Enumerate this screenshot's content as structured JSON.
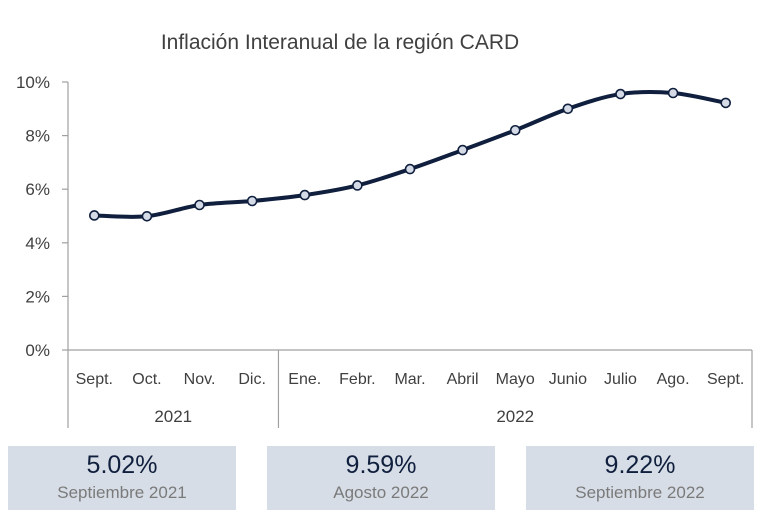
{
  "chart_data": {
    "type": "line",
    "title": "Inflación Interanual de la región CARD",
    "categories": [
      "Sept.",
      "Oct.",
      "Nov.",
      "Dic.",
      "Ene.",
      "Febr.",
      "Mar.",
      "Abril",
      "Mayo",
      "Junio",
      "Julio",
      "Ago.",
      "Sept."
    ],
    "year_groups": [
      {
        "label": "2021",
        "count": 4
      },
      {
        "label": "2022",
        "count": 9
      }
    ],
    "series": [
      {
        "values": [
          5.02,
          4.99,
          5.41,
          5.56,
          5.78,
          6.14,
          6.75,
          7.46,
          8.2,
          9.0,
          9.55,
          9.59,
          9.22
        ]
      }
    ],
    "y_ticks": [
      "0%",
      "2%",
      "4%",
      "6%",
      "8%",
      "10%"
    ],
    "ylim": [
      0,
      10
    ],
    "grid": false,
    "colors": {
      "line": "#0f1f3d",
      "marker_fill": "#d5dbe6",
      "kpi_background": "#d7dde6"
    }
  },
  "kpis": [
    {
      "value": "5.02%",
      "label": "Septiembre 2021"
    },
    {
      "value": "9.59%",
      "label": "Agosto 2022"
    },
    {
      "value": "9.22%",
      "label": "Septiembre 2022"
    }
  ]
}
